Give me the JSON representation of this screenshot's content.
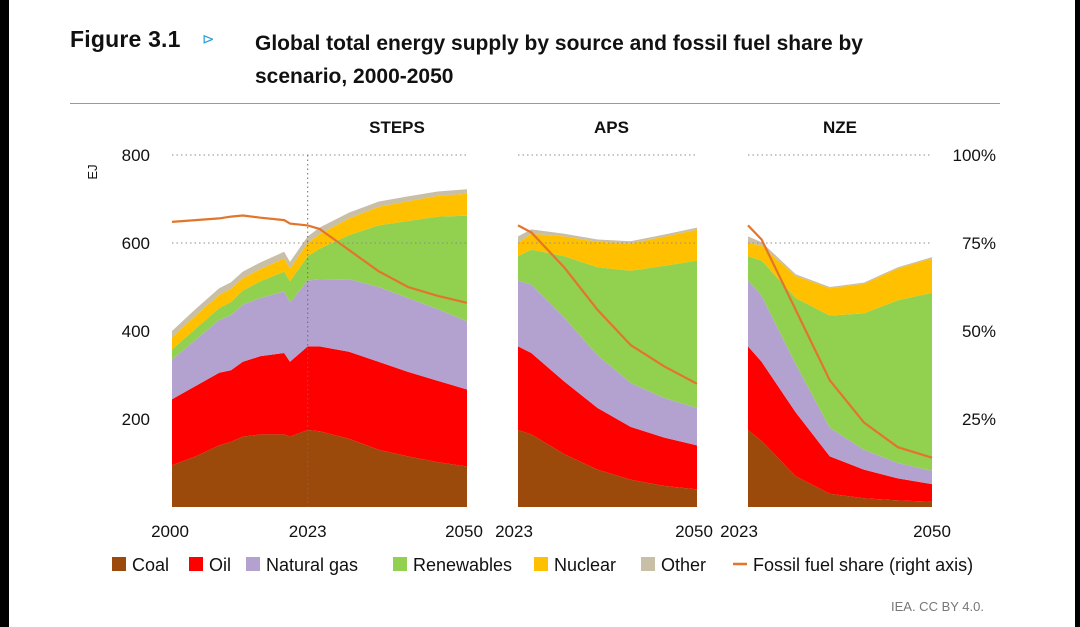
{
  "figure": {
    "label": "Figure 3.1",
    "arrow": "⊳",
    "title": "Global total energy supply by source and fossil fuel share by scenario, 2000-2050",
    "credit": "IEA. CC BY 4.0."
  },
  "colors": {
    "coal": "#9b4a0c",
    "oil": "#ff0000",
    "natural_gas": "#b3a2cf",
    "renewables": "#92d050",
    "nuclear": "#ffc000",
    "other": "#c9bea6",
    "fossil_share": "#e3752b"
  },
  "chart_data": {
    "type": "area",
    "subtype": "stacked area with secondary line axis",
    "ylabel_left": "EJ",
    "ylim_left": [
      0,
      800
    ],
    "yticks_left": [
      "200",
      "400",
      "600",
      "800"
    ],
    "ylim_right": [
      0,
      100
    ],
    "yticks_right": [
      "25%",
      "50%",
      "75%",
      "100%"
    ],
    "gridlines_at": [
      600,
      800
    ],
    "vertical_marker": "2023",
    "legend": [
      "Coal",
      "Oil",
      "Natural gas",
      "Renewables",
      "Nuclear",
      "Other",
      "Fossil fuel share (right axis)"
    ],
    "legend_position": "bottom",
    "stack_order": [
      "coal",
      "oil",
      "natural_gas",
      "renewables",
      "nuclear",
      "other"
    ],
    "panels": [
      {
        "title": "STEPS",
        "tick_labels": [
          "2000",
          "2023",
          "2050"
        ],
        "x": [
          2000,
          2004,
          2008,
          2010,
          2012,
          2015,
          2019,
          2020,
          2023,
          2025,
          2030,
          2035,
          2040,
          2045,
          2050
        ],
        "series": {
          "coal": [
            95,
            115,
            140,
            148,
            160,
            165,
            165,
            160,
            175,
            172,
            155,
            130,
            115,
            102,
            92
          ],
          "oil": [
            150,
            160,
            165,
            163,
            170,
            178,
            185,
            170,
            190,
            193,
            198,
            200,
            192,
            185,
            175
          ],
          "natural_gas": [
            90,
            105,
            120,
            125,
            130,
            132,
            140,
            135,
            150,
            152,
            165,
            170,
            168,
            163,
            155
          ],
          "renewables": [
            23,
            25,
            27,
            30,
            32,
            38,
            45,
            48,
            55,
            70,
            100,
            140,
            175,
            210,
            240
          ],
          "nuclear": [
            28,
            30,
            30,
            30,
            28,
            28,
            30,
            29,
            30,
            33,
            38,
            42,
            45,
            47,
            50
          ],
          "other": [
            14,
            15,
            15,
            15,
            15,
            15,
            15,
            15,
            15,
            15,
            13,
            12,
            11,
            10,
            10
          ]
        },
        "fossil_share": [
          81,
          81.5,
          82,
          82.5,
          82.8,
          82.2,
          81.5,
          80.5,
          80,
          79,
          73,
          67,
          62.5,
          60,
          58
        ]
      },
      {
        "title": "APS",
        "tick_labels": [
          "2023",
          "2050"
        ],
        "x": [
          2023,
          2025,
          2030,
          2035,
          2040,
          2045,
          2050
        ],
        "series": {
          "coal": [
            175,
            165,
            120,
            85,
            62,
            48,
            40
          ],
          "oil": [
            190,
            185,
            165,
            140,
            120,
            110,
            100
          ],
          "natural_gas": [
            150,
            155,
            145,
            120,
            100,
            90,
            85
          ],
          "renewables": [
            55,
            80,
            140,
            200,
            255,
            300,
            335
          ],
          "nuclear": [
            30,
            36,
            45,
            58,
            62,
            66,
            70
          ],
          "other": [
            15,
            10,
            6,
            5,
            5,
            5,
            5
          ]
        },
        "fossil_share": [
          80,
          78,
          68,
          56,
          46,
          40,
          35
        ]
      },
      {
        "title": "NZE",
        "tick_labels": [
          "2023",
          "2050"
        ],
        "x": [
          2023,
          2025,
          2030,
          2035,
          2040,
          2045,
          2050
        ],
        "series": {
          "coal": [
            175,
            150,
            70,
            30,
            20,
            15,
            12
          ],
          "oil": [
            190,
            180,
            145,
            85,
            65,
            50,
            40
          ],
          "natural_gas": [
            150,
            150,
            110,
            65,
            45,
            35,
            30
          ],
          "renewables": [
            55,
            80,
            150,
            255,
            310,
            370,
            405
          ],
          "nuclear": [
            30,
            34,
            50,
            62,
            67,
            72,
            78
          ],
          "other": [
            15,
            8,
            4,
            3,
            3,
            3,
            3
          ]
        },
        "fossil_share": [
          80,
          76,
          56,
          36,
          24,
          17,
          14
        ]
      }
    ]
  }
}
